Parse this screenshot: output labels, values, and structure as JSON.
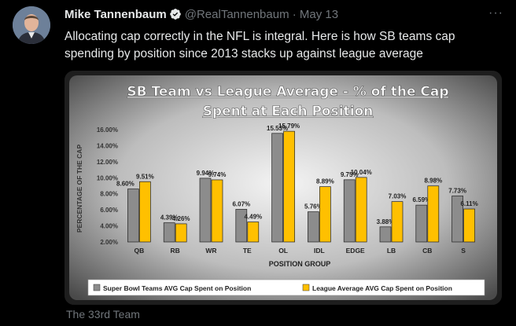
{
  "tweet": {
    "author_name": "Mike Tannenbaum",
    "handle": "@RealTannenbaum",
    "separator": "·",
    "date": "May 13",
    "text_line1": "Allocating cap correctly in the NFL is integral. Here is how SB teams cap",
    "text_line2": "spending by position since 2013 stacks up against league average",
    "source": "The 33rd Team",
    "more_glyph": "···"
  },
  "icons": {
    "verified": "verified-badge-icon",
    "more": "more-options-icon",
    "avatar": "author-avatar"
  },
  "colors": {
    "series1": "#8c8c8c",
    "series2": "#ffc000",
    "title": "#ffffff",
    "handle": "#71767b"
  },
  "chart_data": {
    "type": "bar",
    "title_line1": "SB Team vs League Average - % of the Cap",
    "title_line2": "Spent at Each Position",
    "xlabel": "POSITION GROUP",
    "ylabel": "PERCENTAGE OF THE CAP",
    "ylim": [
      2.0,
      16.0
    ],
    "yticks": [
      "2.00%",
      "4.00%",
      "6.00%",
      "8.00%",
      "10.00%",
      "12.00%",
      "14.00%",
      "16.00%"
    ],
    "grid": false,
    "legend_position": "bottom",
    "categories": [
      "QB",
      "RB",
      "WR",
      "TE",
      "OL",
      "IDL",
      "EDGE",
      "LB",
      "CB",
      "S"
    ],
    "series": [
      {
        "name": "Super Bowl Teams AVG Cap Spent on Position",
        "values": [
          8.6,
          4.39,
          9.94,
          6.07,
          15.53,
          5.76,
          9.75,
          3.88,
          6.59,
          7.73
        ],
        "labels": [
          "8.60%",
          "4.39%",
          "9.94%",
          "6.07%",
          "15.53%",
          "5.76%",
          "9.75%",
          "3.88%",
          "6.59%",
          "7.73%"
        ]
      },
      {
        "name": "League Average AVG Cap Spent on Position",
        "values": [
          9.51,
          4.26,
          9.74,
          4.49,
          15.79,
          8.89,
          10.04,
          7.03,
          8.98,
          6.11
        ],
        "labels": [
          "9.51%",
          "4.26%",
          "9.74%",
          "4.49%",
          "15.79%",
          "8.89%",
          "10.04%",
          "7.03%",
          "8.98%",
          "6.11%"
        ]
      }
    ]
  }
}
